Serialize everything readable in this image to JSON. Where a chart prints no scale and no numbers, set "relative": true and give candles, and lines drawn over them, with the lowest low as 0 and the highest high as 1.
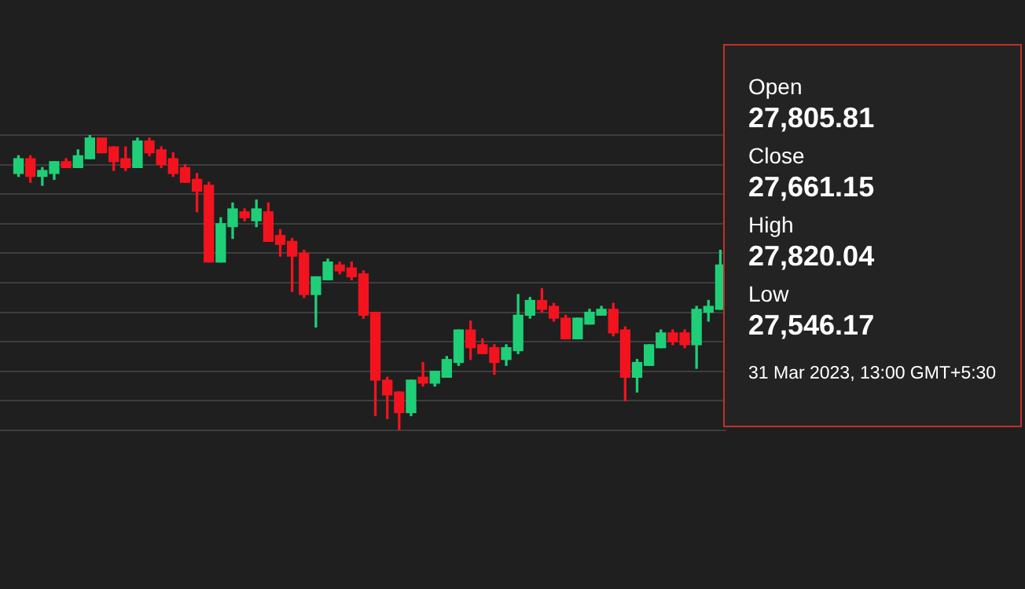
{
  "chart_data": {
    "type": "candlestick",
    "relative": true,
    "grid": "y",
    "tick_labels": false,
    "categories": [
      null,
      null,
      null,
      null,
      null,
      null,
      null,
      null,
      null,
      null,
      null,
      null,
      null,
      null,
      null,
      null,
      null,
      null,
      null,
      null,
      null,
      null,
      null,
      null,
      null,
      null,
      null,
      null,
      null,
      null,
      null,
      null,
      null,
      null,
      null,
      null,
      null,
      null,
      null,
      null,
      null,
      null,
      null,
      null,
      null,
      null,
      null,
      null,
      null,
      null,
      null,
      null,
      null,
      null,
      null,
      null,
      null,
      null,
      null,
      null
    ],
    "ohlc": [
      [
        0.87,
        0.93,
        0.86,
        0.92
      ],
      [
        0.92,
        0.93,
        0.84,
        0.86
      ],
      [
        0.86,
        0.89,
        0.83,
        0.88
      ],
      [
        0.87,
        0.91,
        0.85,
        0.91
      ],
      [
        0.91,
        0.92,
        0.89,
        0.89
      ],
      [
        0.89,
        0.95,
        0.89,
        0.93
      ],
      [
        0.92,
        1,
        0.92,
        0.99
      ],
      [
        0.99,
        0.99,
        0.94,
        0.94
      ],
      [
        0.96,
        0.96,
        0.88,
        0.91
      ],
      [
        0.92,
        0.96,
        0.88,
        0.89
      ],
      [
        0.89,
        0.99,
        0.89,
        0.98
      ],
      [
        0.98,
        0.99,
        0.93,
        0.94
      ],
      [
        0.95,
        0.96,
        0.89,
        0.9
      ],
      [
        0.92,
        0.94,
        0.86,
        0.87
      ],
      [
        0.89,
        0.9,
        0.84,
        0.84
      ],
      [
        0.85,
        0.87,
        0.74,
        0.81
      ],
      [
        0.83,
        0.84,
        0.57,
        0.57
      ],
      [
        0.57,
        0.72,
        0.57,
        0.7
      ],
      [
        0.69,
        0.77,
        0.65,
        0.75
      ],
      [
        0.74,
        0.75,
        0.71,
        0.72
      ],
      [
        0.71,
        0.78,
        0.69,
        0.75
      ],
      [
        0.74,
        0.77,
        0.64,
        0.64
      ],
      [
        0.66,
        0.68,
        0.59,
        0.63
      ],
      [
        0.64,
        0.65,
        0.47,
        0.59
      ],
      [
        0.6,
        0.61,
        0.45,
        0.46
      ],
      [
        0.46,
        0.52,
        0.35,
        0.52
      ],
      [
        0.51,
        0.58,
        0.51,
        0.57
      ],
      [
        0.56,
        0.57,
        0.53,
        0.54
      ],
      [
        0.55,
        0.57,
        0.51,
        0.52
      ],
      [
        0.53,
        0.54,
        0.38,
        0.39
      ],
      [
        0.4,
        0.4,
        0.05,
        0.17
      ],
      [
        0.17,
        0.18,
        0.04,
        0.12
      ],
      [
        0.13,
        0.13,
        0,
        0.06
      ],
      [
        0.06,
        0.17,
        0.05,
        0.17
      ],
      [
        0.18,
        0.23,
        0.15,
        0.16
      ],
      [
        0.16,
        0.2,
        0.15,
        0.2
      ],
      [
        0.18,
        0.25,
        0.18,
        0.24
      ],
      [
        0.23,
        0.34,
        0.22,
        0.34
      ],
      [
        0.34,
        0.37,
        0.24,
        0.28
      ],
      [
        0.29,
        0.31,
        0.26,
        0.26
      ],
      [
        0.28,
        0.29,
        0.19,
        0.23
      ],
      [
        0.24,
        0.29,
        0.22,
        0.28
      ],
      [
        0.27,
        0.46,
        0.26,
        0.39
      ],
      [
        0.39,
        0.45,
        0.38,
        0.44
      ],
      [
        0.44,
        0.48,
        0.4,
        0.41
      ],
      [
        0.42,
        0.43,
        0.37,
        0.38
      ],
      [
        0.38,
        0.39,
        0.31,
        0.31
      ],
      [
        0.31,
        0.38,
        0.31,
        0.38
      ],
      [
        0.36,
        0.41,
        0.36,
        0.4
      ],
      [
        0.39,
        0.42,
        0.39,
        0.41
      ],
      [
        0.41,
        0.43,
        0.32,
        0.33
      ],
      [
        0.34,
        0.35,
        0.1,
        0.18
      ],
      [
        0.18,
        0.24,
        0.13,
        0.23
      ],
      [
        0.22,
        0.29,
        0.22,
        0.29
      ],
      [
        0.28,
        0.34,
        0.28,
        0.33
      ],
      [
        0.33,
        0.34,
        0.29,
        0.3
      ],
      [
        0.33,
        0.34,
        0.28,
        0.29
      ],
      [
        0.29,
        0.42,
        0.21,
        0.41
      ],
      [
        0.4,
        0.44,
        0.37,
        0.42
      ],
      [
        0.41,
        0.61,
        0.41,
        0.56
      ]
    ],
    "colors": [
      "#1fcf78",
      "#f2131f",
      "#1fcf78",
      "#1fcf78",
      "#f2131f",
      "#1fcf78",
      "#1fcf78",
      "#f2131f",
      "#f2131f",
      "#f2131f",
      "#1fcf78",
      "#f2131f",
      "#f2131f",
      "#f2131f",
      "#f2131f",
      "#f2131f",
      "#f2131f",
      "#1fcf78",
      "#1fcf78",
      "#f2131f",
      "#1fcf78",
      "#f2131f",
      "#f2131f",
      "#f2131f",
      "#f2131f",
      "#1fcf78",
      "#1fcf78",
      "#f2131f",
      "#f2131f",
      "#f2131f",
      "#f2131f",
      "#f2131f",
      "#f2131f",
      "#1fcf78",
      "#f2131f",
      "#1fcf78",
      "#1fcf78",
      "#1fcf78",
      "#f2131f",
      "#f2131f",
      "#f2131f",
      "#1fcf78",
      "#1fcf78",
      "#1fcf78",
      "#f2131f",
      "#f2131f",
      "#f2131f",
      "#1fcf78",
      "#1fcf78",
      "#1fcf78",
      "#f2131f",
      "#f2131f",
      "#1fcf78",
      "#1fcf78",
      "#1fcf78",
      "#f2131f",
      "#f2131f",
      "#1fcf78",
      "#1fcf78",
      "#1fcf78"
    ],
    "annotations": [
      "Open",
      "27,805.81",
      "Close",
      "27,661.15",
      "High",
      "27,820.04",
      "Low",
      "27,546.17",
      "31 Mar 2023, 13:00 GMT+5:30"
    ]
  }
}
